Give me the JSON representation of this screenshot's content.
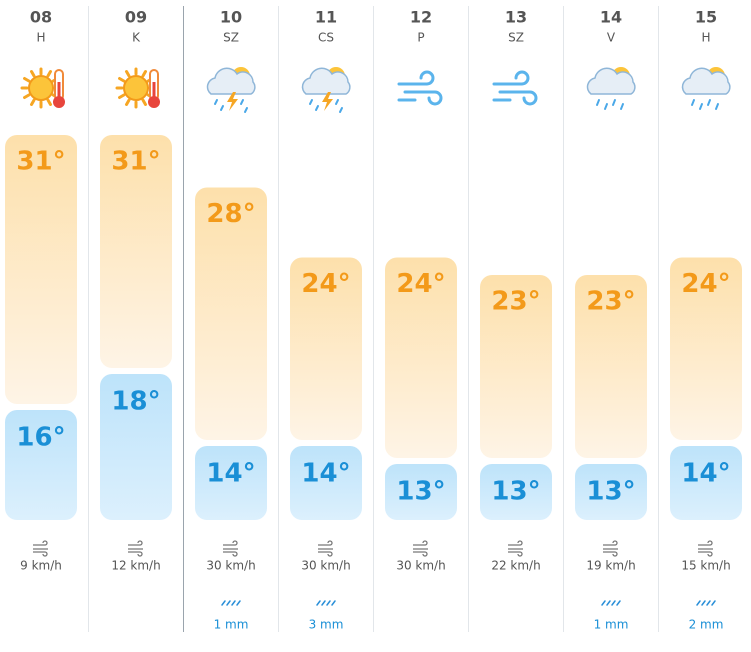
{
  "days": [
    {
      "date": "08",
      "weekday": "H",
      "icon": "sun-hot",
      "high": {
        "value": 31,
        "label": "31°"
      },
      "low": {
        "value": 16,
        "label": "16°"
      },
      "wind": "9 km/h"
    },
    {
      "date": "09",
      "weekday": "K",
      "icon": "sun-hot",
      "high": {
        "value": 31,
        "label": "31°"
      },
      "low": {
        "value": 18,
        "label": "18°"
      },
      "wind": "12 km/h"
    },
    {
      "date": "10",
      "weekday": "SZ",
      "icon": "storm",
      "high": {
        "value": 28,
        "label": "28°"
      },
      "low": {
        "value": 14,
        "label": "14°"
      },
      "wind": "30 km/h",
      "rain": "1 mm"
    },
    {
      "date": "11",
      "weekday": "CS",
      "icon": "storm",
      "high": {
        "value": 24,
        "label": "24°"
      },
      "low": {
        "value": 14,
        "label": "14°"
      },
      "wind": "30 km/h",
      "rain": "3 mm"
    },
    {
      "date": "12",
      "weekday": "P",
      "icon": "wind",
      "high": {
        "value": 24,
        "label": "24°"
      },
      "low": {
        "value": 13,
        "label": "13°"
      },
      "wind": "30 km/h"
    },
    {
      "date": "13",
      "weekday": "SZ",
      "icon": "wind",
      "high": {
        "value": 23,
        "label": "23°"
      },
      "low": {
        "value": 13,
        "label": "13°"
      },
      "wind": "22 km/h"
    },
    {
      "date": "14",
      "weekday": "V",
      "icon": "rain-sun",
      "high": {
        "value": 23,
        "label": "23°"
      },
      "low": {
        "value": 13,
        "label": "13°"
      },
      "wind": "19 km/h",
      "rain": "1 mm"
    },
    {
      "date": "15",
      "weekday": "H",
      "icon": "rain-sun",
      "high": {
        "value": 24,
        "label": "24°"
      },
      "low": {
        "value": 14,
        "label": "14°"
      },
      "wind": "15 km/h",
      "rain": "2 mm"
    }
  ]
}
